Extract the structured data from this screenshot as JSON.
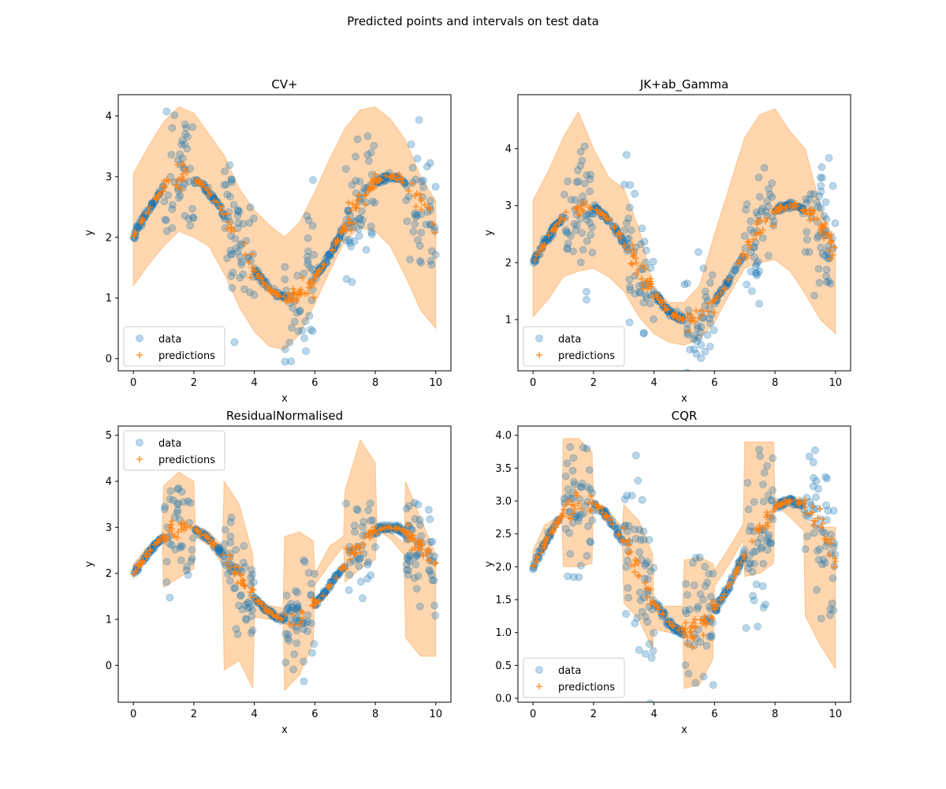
{
  "figure": {
    "suptitle": "Predicted points and intervals on test data"
  },
  "colors": {
    "data": "#1f77b4",
    "predictions": "#ff7f0e",
    "interval": "#ffbb78",
    "frame": "#000000"
  },
  "chart_data": [
    {
      "type": "scatter",
      "title": "CV+",
      "xlabel": "x",
      "ylabel": "y",
      "xlim": [
        -0.5,
        10.5
      ],
      "ylim": [
        -0.2,
        4.35
      ],
      "xticks": [
        0,
        2,
        4,
        6,
        8,
        10
      ],
      "yticks": [
        0,
        1,
        2,
        3,
        4
      ],
      "ytick_labels": [
        "0",
        "1",
        "2",
        "3",
        "4"
      ],
      "legend_position": "lower-left",
      "legend": [
        "data",
        "predictions"
      ],
      "interval": {
        "x": [
          0,
          0.5,
          1,
          1.5,
          2,
          2.5,
          3,
          3.5,
          4,
          4.5,
          5,
          5.5,
          6,
          6.5,
          7,
          7.5,
          8,
          8.5,
          9,
          9.5,
          10
        ],
        "upper": [
          3.05,
          3.5,
          3.9,
          4.15,
          4.05,
          3.7,
          3.35,
          2.8,
          2.45,
          2.2,
          2.0,
          2.25,
          2.75,
          3.3,
          3.8,
          4.1,
          4.15,
          3.95,
          3.6,
          3.0,
          2.6
        ],
        "lower": [
          1.2,
          1.55,
          1.85,
          2.1,
          2.0,
          1.85,
          1.4,
          0.85,
          0.45,
          0.2,
          0.15,
          0.4,
          0.9,
          1.45,
          1.95,
          2.15,
          2.1,
          1.85,
          1.35,
          0.8,
          0.5
        ]
      },
      "data_series": {
        "name": "data",
        "seed": 1,
        "n": 480,
        "noisy_regions": [
          [
            1.0,
            2.0
          ],
          [
            3.0,
            4.0
          ],
          [
            5.0,
            6.0
          ],
          [
            7.0,
            8.0
          ],
          [
            9.0,
            10.0
          ]
        ],
        "noise_clean": 0.03,
        "noise_noisy": 0.55
      },
      "prediction_series": {
        "name": "predictions",
        "seed": 2,
        "n": 220,
        "noise": 0.1
      }
    },
    {
      "type": "scatter",
      "title": "JK+ab_Gamma",
      "xlabel": "x",
      "ylabel": "y",
      "xlim": [
        -0.5,
        10.5
      ],
      "ylim": [
        0.1,
        4.95
      ],
      "xticks": [
        0,
        2,
        4,
        6,
        8,
        10
      ],
      "yticks": [
        1,
        2,
        3,
        4
      ],
      "ytick_labels": [
        "1",
        "2",
        "3",
        "4"
      ],
      "legend_position": "lower-left",
      "legend": [
        "data",
        "predictions"
      ],
      "interval": {
        "x": [
          0,
          0.5,
          1,
          1.5,
          2,
          2.5,
          3,
          3.5,
          4,
          4.5,
          5,
          5.5,
          6,
          6.5,
          7,
          7.5,
          8,
          8.5,
          9,
          9.5,
          10
        ],
        "upper": [
          3.1,
          3.6,
          4.2,
          4.65,
          4.0,
          3.5,
          3.3,
          2.6,
          1.55,
          1.3,
          1.3,
          1.6,
          2.5,
          3.35,
          4.2,
          4.6,
          4.7,
          4.3,
          4.0,
          3.0,
          2.3
        ],
        "lower": [
          1.05,
          1.35,
          1.75,
          1.85,
          1.9,
          1.75,
          1.5,
          1.05,
          0.75,
          0.6,
          0.55,
          0.65,
          0.95,
          1.45,
          1.9,
          2.0,
          2.05,
          1.85,
          1.45,
          1.0,
          0.75
        ]
      },
      "data_series": {
        "name": "data",
        "seed": 3,
        "n": 480,
        "noisy_regions": [
          [
            1.0,
            2.0
          ],
          [
            3.0,
            4.0
          ],
          [
            5.0,
            6.0
          ],
          [
            7.0,
            8.0
          ],
          [
            9.0,
            10.0
          ]
        ],
        "noise_clean": 0.03,
        "noise_noisy": 0.55
      },
      "prediction_series": {
        "name": "predictions",
        "seed": 4,
        "n": 220,
        "noise": 0.1
      }
    },
    {
      "type": "scatter",
      "title": "ResidualNormalised",
      "xlabel": "x",
      "ylabel": "y",
      "xlim": [
        -0.5,
        10.5
      ],
      "ylim": [
        -0.8,
        5.2
      ],
      "xticks": [
        0,
        2,
        4,
        6,
        8,
        10
      ],
      "yticks": [
        0,
        1,
        2,
        3,
        4,
        5
      ],
      "ytick_labels": [
        "0",
        "1",
        "2",
        "3",
        "4",
        "5"
      ],
      "legend_position": "upper-left",
      "legend": [
        "data",
        "predictions"
      ],
      "interval": {
        "x": [
          0,
          0.5,
          0.95,
          1.0,
          1.5,
          2.0,
          2.05,
          2.5,
          2.95,
          3.0,
          3.5,
          3.95,
          4.0,
          4.5,
          4.95,
          5.0,
          5.5,
          5.95,
          6.0,
          6.5,
          6.95,
          7.0,
          7.5,
          8.0,
          8.05,
          8.5,
          8.95,
          9.0,
          9.5,
          10.0
        ],
        "upper": [
          2.2,
          2.6,
          2.85,
          3.9,
          4.2,
          4.0,
          3.05,
          2.9,
          2.6,
          4.0,
          3.5,
          2.4,
          1.5,
          1.3,
          1.25,
          2.8,
          2.9,
          2.7,
          2.0,
          2.6,
          2.8,
          3.8,
          4.9,
          4.4,
          3.1,
          2.9,
          2.65,
          4.0,
          3.2,
          2.4
        ],
        "lower": [
          1.9,
          2.4,
          2.7,
          1.7,
          1.9,
          2.1,
          2.8,
          2.6,
          2.2,
          -0.1,
          0.1,
          -0.5,
          1.05,
          1.0,
          1.0,
          -0.55,
          -0.2,
          0.5,
          1.75,
          2.2,
          2.6,
          1.8,
          2.1,
          2.3,
          2.95,
          2.75,
          2.4,
          0.6,
          0.2,
          0.2
        ]
      },
      "data_series": {
        "name": "data",
        "seed": 5,
        "n": 480,
        "noisy_regions": [
          [
            1.0,
            2.0
          ],
          [
            3.0,
            4.0
          ],
          [
            5.0,
            6.0
          ],
          [
            7.0,
            8.0
          ],
          [
            9.0,
            10.0
          ]
        ],
        "noise_clean": 0.03,
        "noise_noisy": 0.55
      },
      "prediction_series": {
        "name": "predictions",
        "seed": 6,
        "n": 220,
        "noise": 0.1
      }
    },
    {
      "type": "scatter",
      "title": "CQR",
      "xlabel": "x",
      "ylabel": "y",
      "xlim": [
        -0.5,
        10.5
      ],
      "ylim": [
        -0.06,
        4.14
      ],
      "xticks": [
        0,
        2,
        4,
        6,
        8,
        10
      ],
      "yticks": [
        0,
        0.5,
        1,
        1.5,
        2,
        2.5,
        3,
        3.5,
        4
      ],
      "ytick_labels": [
        "0.0",
        "0.5",
        "1.0",
        "1.5",
        "2.0",
        "2.5",
        "3.0",
        "3.5",
        "4.0"
      ],
      "legend_position": "lower-left",
      "legend": [
        "data",
        "predictions"
      ],
      "interval": {
        "x": [
          0,
          0.4,
          0.45,
          0.95,
          1.0,
          1.5,
          1.95,
          2.0,
          2.5,
          2.95,
          3.0,
          3.5,
          3.95,
          4.0,
          4.5,
          4.95,
          5.0,
          5.5,
          5.95,
          6.0,
          6.5,
          6.95,
          7.0,
          7.5,
          7.95,
          8.0,
          8.5,
          8.95,
          9.0,
          9.5,
          10.0
        ],
        "upper": [
          2.25,
          2.65,
          2.65,
          2.8,
          3.95,
          3.95,
          3.75,
          3.0,
          2.85,
          2.6,
          2.95,
          2.7,
          2.2,
          1.4,
          1.4,
          1.4,
          2.1,
          2.15,
          2.05,
          1.95,
          2.3,
          2.65,
          3.9,
          3.9,
          3.9,
          3.05,
          2.95,
          2.95,
          2.7,
          2.6,
          2.6
        ],
        "lower": [
          2.05,
          2.25,
          2.45,
          2.7,
          2.0,
          2.0,
          2.05,
          2.9,
          2.65,
          2.4,
          1.45,
          1.2,
          0.75,
          1.05,
          1.0,
          1.0,
          0.15,
          0.2,
          0.6,
          1.7,
          2.05,
          2.4,
          1.85,
          1.9,
          2.05,
          2.95,
          2.75,
          2.55,
          1.25,
          0.8,
          0.45
        ]
      },
      "data_series": {
        "name": "data",
        "seed": 7,
        "n": 480,
        "noisy_regions": [
          [
            1.0,
            2.0
          ],
          [
            3.0,
            4.0
          ],
          [
            5.0,
            6.0
          ],
          [
            7.0,
            8.0
          ],
          [
            9.0,
            10.0
          ]
        ],
        "noise_clean": 0.03,
        "noise_noisy": 0.55
      },
      "prediction_series": {
        "name": "predictions",
        "seed": 8,
        "n": 220,
        "noise": 0.1
      }
    }
  ]
}
